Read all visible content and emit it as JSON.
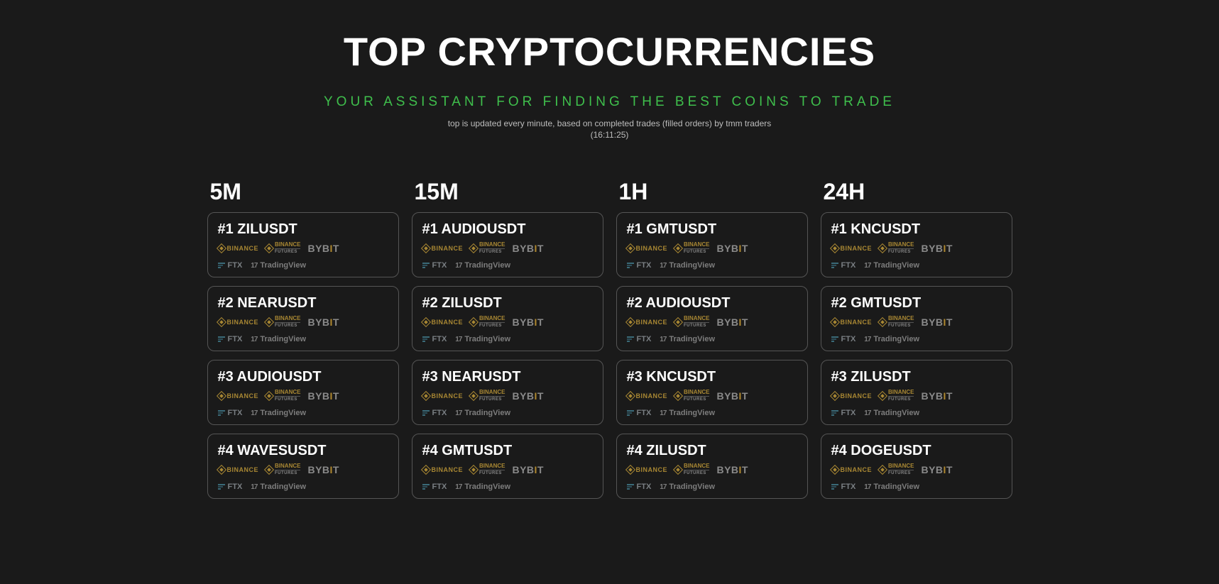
{
  "header": {
    "title": "TOP CRYPTOCURRENCIES",
    "subtitle": "YOUR ASSISTANT FOR FINDING THE BEST COINS TO TRADE",
    "meta": "top is updated every minute, based on completed trades (filled orders) by tmm traders",
    "timestamp": "(16:11:25)"
  },
  "exchanges": {
    "binance": "BINANCE",
    "binance_futures_top": "BINANCE",
    "binance_futures_sub": "FUTURES",
    "bybit_pre": "BYB",
    "bybit_i": "I",
    "bybit_post": "T",
    "ftx": "FTX",
    "tradingview": "TradingView",
    "tv_icon": "17"
  },
  "columns": [
    {
      "label": "5M",
      "items": [
        {
          "rank": "#1",
          "pair": "ZILUSDT"
        },
        {
          "rank": "#2",
          "pair": "NEARUSDT"
        },
        {
          "rank": "#3",
          "pair": "AUDIOUSDT"
        },
        {
          "rank": "#4",
          "pair": "WAVESUSDT"
        }
      ]
    },
    {
      "label": "15M",
      "items": [
        {
          "rank": "#1",
          "pair": "AUDIOUSDT"
        },
        {
          "rank": "#2",
          "pair": "ZILUSDT"
        },
        {
          "rank": "#3",
          "pair": "NEARUSDT"
        },
        {
          "rank": "#4",
          "pair": "GMTUSDT"
        }
      ]
    },
    {
      "label": "1H",
      "items": [
        {
          "rank": "#1",
          "pair": "GMTUSDT"
        },
        {
          "rank": "#2",
          "pair": "AUDIOUSDT"
        },
        {
          "rank": "#3",
          "pair": "KNCUSDT"
        },
        {
          "rank": "#4",
          "pair": "ZILUSDT"
        }
      ]
    },
    {
      "label": "24H",
      "items": [
        {
          "rank": "#1",
          "pair": "KNCUSDT"
        },
        {
          "rank": "#2",
          "pair": "GMTUSDT"
        },
        {
          "rank": "#3",
          "pair": "ZILUSDT"
        },
        {
          "rank": "#4",
          "pair": "DOGEUSDT"
        }
      ]
    }
  ],
  "style": {
    "bg": "#1a1a1a",
    "title_color": "#ffffff",
    "subtitle_color": "#3fbf4c",
    "meta_color": "#bdbdbd",
    "card_border": "#555555",
    "binance_color": "#a88733",
    "bybit_color": "#8a8a8a",
    "ftx_color": "#7a7f83",
    "ftx_accent": "#3a6a78",
    "tv_color": "#7d7d7d",
    "title_fontsize": 56,
    "col_header_fontsize": 32,
    "card_title_fontsize": 20
  }
}
